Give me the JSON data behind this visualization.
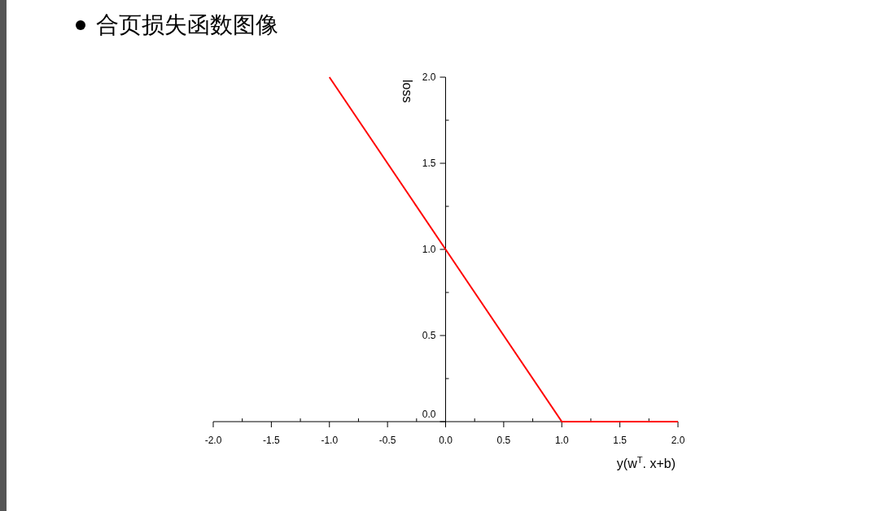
{
  "chart_data": {
    "type": "line",
    "title": "合页损失函数图像",
    "xlabel": "y(w$^{T}$. x+b)",
    "ylabel": "loss",
    "x": [
      -1,
      0,
      1,
      2
    ],
    "series": [
      {
        "color": "#ff0000",
        "values": [
          2,
          1,
          0,
          0
        ]
      }
    ],
    "xlim": [
      -2,
      2
    ],
    "ylim": [
      0,
      2
    ],
    "xticks": [
      {
        "value": -2,
        "label": "-2.0"
      },
      {
        "value": -1.5,
        "label": "-1.5"
      },
      {
        "value": -1,
        "label": "-1.0"
      },
      {
        "value": -0.5,
        "label": "-0.5"
      },
      {
        "value": 0,
        "label": "0.0"
      },
      {
        "value": 0.5,
        "label": "0.5"
      },
      {
        "value": 1,
        "label": "1.0"
      },
      {
        "value": 1.5,
        "label": "1.5"
      },
      {
        "value": 2,
        "label": "2.0"
      }
    ],
    "yticks": [
      {
        "value": 0,
        "label": "0.0"
      },
      {
        "value": 0.5,
        "label": "0.5"
      },
      {
        "value": 1,
        "label": "1.0"
      },
      {
        "value": 1.5,
        "label": "1.5"
      },
      {
        "value": 2,
        "label": "2.0"
      }
    ],
    "grid": false,
    "marker": "none",
    "line_style": "solid"
  }
}
